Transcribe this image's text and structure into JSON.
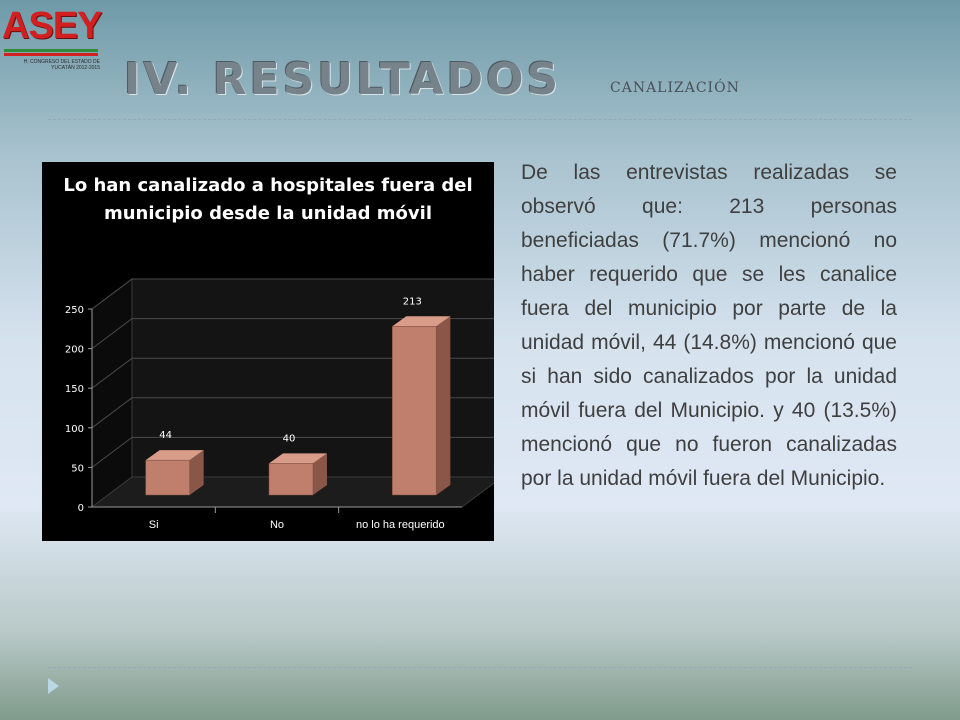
{
  "logo": {
    "text": "ASEY",
    "subtext": "H. CONGRESO DEL ESTADO DE YUCATÁN 2012-2015",
    "colors": {
      "red": "#d21f1f",
      "green": "#2e8b3a"
    }
  },
  "header": {
    "title": "IV. RESULTADOS",
    "subtitle": "CANALIZACIÓN"
  },
  "chart_data": {
    "type": "bar",
    "title": "Lo han canalizado a hospitales fuera del municipio desde la unidad móvil",
    "categories": [
      "Si",
      "No",
      "no lo ha requerido"
    ],
    "values": [
      44,
      40,
      213
    ],
    "data_labels": [
      "44",
      "40",
      "213"
    ],
    "yticks": [
      "0",
      "50",
      "100",
      "150",
      "200",
      "250"
    ],
    "ylim": [
      0,
      250
    ],
    "xlabel": "",
    "ylabel": "",
    "style": "3d-column",
    "bar_color": "#c07f6c",
    "background": "#000000",
    "grid": true
  },
  "body_text": "De las entrevistas realizadas se observó que: 213 personas beneficiadas (71.7%) mencionó no haber requerido que se les canalice fuera del municipio por parte de la unidad móvil, 44 (14.8%) mencionó que si han sido canalizados por la unidad móvil fuera del Municipio. y 40 (13.5%) mencionó que no fueron canalizadas por la unidad móvil fuera del Municipio.",
  "nav": {
    "icon": "next-slide-arrow-icon"
  }
}
